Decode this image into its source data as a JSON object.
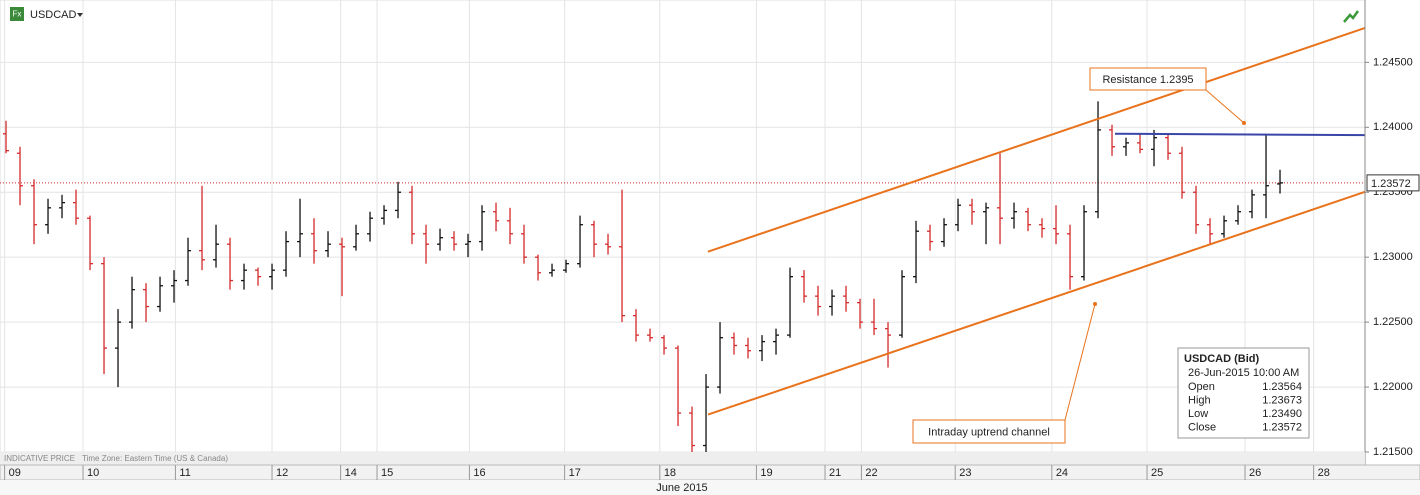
{
  "chart_data": {
    "type": "ohlc",
    "title": "USDCAD",
    "x_label": "June 2015",
    "footer": [
      "INDICATIVE PRICE",
      "Time Zone: Eastern Time (US & Canada)"
    ],
    "up_color": "#111111",
    "down_color": "#d42a2a",
    "xlim": [
      -0.43,
      97.07
    ],
    "ylim": [
      1.214,
      1.2498
    ],
    "yticks": [
      {
        "value": 1.215,
        "label": "1.21500"
      },
      {
        "value": 1.22,
        "label": "1.22000"
      },
      {
        "value": 1.225,
        "label": "1.22500"
      },
      {
        "value": 1.23,
        "label": "1.23000"
      },
      {
        "value": 1.235,
        "label": "1.23500"
      },
      {
        "value": 1.24,
        "label": "1.24000"
      },
      {
        "value": 1.245,
        "label": "1.24500"
      }
    ],
    "xticks": [
      {
        "value": -0.1,
        "label": "09"
      },
      {
        "value": 5.5,
        "label": "10"
      },
      {
        "value": 12.1,
        "label": "11"
      },
      {
        "value": 19.0,
        "label": "12"
      },
      {
        "value": 23.9,
        "label": "14"
      },
      {
        "value": 26.5,
        "label": "15"
      },
      {
        "value": 33.1,
        "label": "16"
      },
      {
        "value": 39.9,
        "label": "17"
      },
      {
        "value": 46.7,
        "label": "18"
      },
      {
        "value": 53.6,
        "label": "19"
      },
      {
        "value": 58.5,
        "label": "21"
      },
      {
        "value": 61.1,
        "label": "22"
      },
      {
        "value": 67.8,
        "label": "23"
      },
      {
        "value": 74.7,
        "label": "24"
      },
      {
        "value": 81.5,
        "label": "25"
      },
      {
        "value": 88.5,
        "label": "26"
      },
      {
        "value": 93.4,
        "label": "28"
      }
    ],
    "open": [
      1.2395,
      1.238,
      1.2355,
      1.2325,
      1.2338,
      1.2342,
      1.233,
      1.2295,
      1.223,
      1.225,
      1.2275,
      1.2262,
      1.2278,
      1.2282,
      1.2305,
      1.2298,
      1.231,
      1.2282,
      1.229,
      1.2285,
      1.229,
      1.2312,
      1.2318,
      1.2305,
      1.231,
      1.2308,
      1.2318,
      1.233,
      1.2336,
      1.235,
      1.2318,
      1.231,
      1.2315,
      1.231,
      1.2312,
      1.2335,
      1.2328,
      1.2318,
      1.23,
      1.2288,
      1.229,
      1.2295,
      1.2325,
      1.231,
      1.2308,
      1.2255,
      1.224,
      1.2238,
      1.223,
      1.218,
      1.2155,
      1.22,
      1.2238,
      1.2232,
      1.2228,
      1.2235,
      1.224,
      1.2285,
      1.227,
      1.2262,
      1.227,
      1.2265,
      1.225,
      1.2245,
      1.224,
      1.2285,
      1.232,
      1.2312,
      1.2325,
      1.234,
      1.2335,
      1.2338,
      1.233,
      1.2335,
      1.2325,
      1.2322,
      1.2318,
      1.2285,
      1.2335,
      1.2398,
      1.2385,
      1.2388,
      1.2383,
      1.2392,
      1.238,
      1.235,
      1.2325,
      1.2318,
      1.2328,
      1.2335,
      1.2348,
      1.23564
    ],
    "high": [
      1.2405,
      1.2385,
      1.236,
      1.2345,
      1.2348,
      1.2352,
      1.2332,
      1.23,
      1.226,
      1.2285,
      1.228,
      1.2285,
      1.229,
      1.2315,
      1.2355,
      1.2325,
      1.2315,
      1.2295,
      1.2292,
      1.2295,
      1.232,
      1.2345,
      1.233,
      1.232,
      1.2315,
      1.2325,
      1.2335,
      1.234,
      1.2358,
      1.2355,
      1.2325,
      1.2322,
      1.232,
      1.2318,
      1.234,
      1.2342,
      1.2338,
      1.2325,
      1.2302,
      1.2295,
      1.2298,
      1.2332,
      1.2328,
      1.2318,
      1.2352,
      1.226,
      1.2245,
      1.224,
      1.2232,
      1.2185,
      1.221,
      1.225,
      1.2242,
      1.2238,
      1.224,
      1.2245,
      1.2292,
      1.229,
      1.2278,
      1.2275,
      1.2278,
      1.2268,
      1.2268,
      1.225,
      1.229,
      1.2328,
      1.2325,
      1.233,
      1.2345,
      1.2345,
      1.2342,
      1.238,
      1.2342,
      1.2338,
      1.233,
      1.234,
      1.2325,
      1.234,
      1.242,
      1.2402,
      1.2392,
      1.2395,
      1.2398,
      1.2395,
      1.2385,
      1.2355,
      1.233,
      1.2332,
      1.234,
      1.2352,
      1.2395,
      1.23673
    ],
    "low": [
      1.238,
      1.234,
      1.231,
      1.2318,
      1.233,
      1.2325,
      1.229,
      1.221,
      1.22,
      1.2245,
      1.225,
      1.2258,
      1.2265,
      1.2278,
      1.229,
      1.2292,
      1.2275,
      1.2275,
      1.2278,
      1.2275,
      1.2285,
      1.23,
      1.2295,
      1.23,
      1.227,
      1.2305,
      1.2312,
      1.2325,
      1.233,
      1.231,
      1.2295,
      1.2305,
      1.2305,
      1.23,
      1.2305,
      1.232,
      1.231,
      1.2295,
      1.2282,
      1.2285,
      1.2288,
      1.2292,
      1.23,
      1.2302,
      1.225,
      1.2235,
      1.2235,
      1.2225,
      1.217,
      1.2145,
      1.215,
      1.2195,
      1.2225,
      1.2222,
      1.222,
      1.2225,
      1.2238,
      1.2265,
      1.2255,
      1.2255,
      1.2258,
      1.2245,
      1.224,
      1.2215,
      1.2238,
      1.228,
      1.2305,
      1.2308,
      1.232,
      1.2325,
      1.231,
      1.231,
      1.2322,
      1.232,
      1.2315,
      1.231,
      1.2275,
      1.2282,
      1.233,
      1.2378,
      1.2378,
      1.238,
      1.237,
      1.2375,
      1.2345,
      1.2318,
      1.231,
      1.2315,
      1.2325,
      1.233,
      1.233,
      1.2349
    ],
    "close": [
      1.2382,
      1.2355,
      1.2325,
      1.2338,
      1.2342,
      1.233,
      1.2295,
      1.223,
      1.225,
      1.2275,
      1.2262,
      1.2278,
      1.2282,
      1.2305,
      1.2298,
      1.231,
      1.2282,
      1.229,
      1.2285,
      1.229,
      1.2312,
      1.2318,
      1.2305,
      1.231,
      1.2308,
      1.2318,
      1.233,
      1.2336,
      1.235,
      1.2318,
      1.231,
      1.2315,
      1.231,
      1.2312,
      1.2335,
      1.2328,
      1.2318,
      1.23,
      1.2288,
      1.229,
      1.2295,
      1.2325,
      1.231,
      1.2308,
      1.2255,
      1.224,
      1.2238,
      1.223,
      1.218,
      1.2155,
      1.22,
      1.2238,
      1.2232,
      1.2228,
      1.2235,
      1.224,
      1.2285,
      1.227,
      1.2262,
      1.227,
      1.2265,
      1.225,
      1.2245,
      1.224,
      1.2285,
      1.232,
      1.2312,
      1.2325,
      1.234,
      1.2335,
      1.2338,
      1.233,
      1.2335,
      1.2325,
      1.2322,
      1.2318,
      1.2285,
      1.2335,
      1.2398,
      1.2385,
      1.2388,
      1.2383,
      1.2392,
      1.238,
      1.235,
      1.2325,
      1.2318,
      1.2328,
      1.2335,
      1.2348,
      1.2355,
      1.23572
    ],
    "last_price": {
      "value": 1.23572,
      "label": "1.23572"
    },
    "trendlines": [
      {
        "color": "#e8731c",
        "points": [
          [
            50.14,
            1.23042
          ],
          [
            97.07,
            1.24765
          ]
        ]
      },
      {
        "color": "#e8731c",
        "points": [
          [
            50.14,
            1.21788
          ],
          [
            97.07,
            1.23503
          ]
        ]
      },
      {
        "color": "#3a45a8",
        "points": [
          [
            79.21,
            1.2395
          ],
          [
            97.07,
            1.2394
          ]
        ]
      }
    ],
    "annotations": [
      {
        "text": "Resistance 1.2395"
      },
      {
        "text": "Intraday uptrend channel"
      }
    ],
    "info_box": {
      "title": "USDCAD (Bid)",
      "time": "26-Jun-2015 10:00 AM",
      "rows": [
        [
          "Open",
          "1.23564"
        ],
        [
          "High",
          "1.23673"
        ],
        [
          "Low",
          "1.23490"
        ],
        [
          "Close",
          "1.23572"
        ]
      ]
    }
  }
}
